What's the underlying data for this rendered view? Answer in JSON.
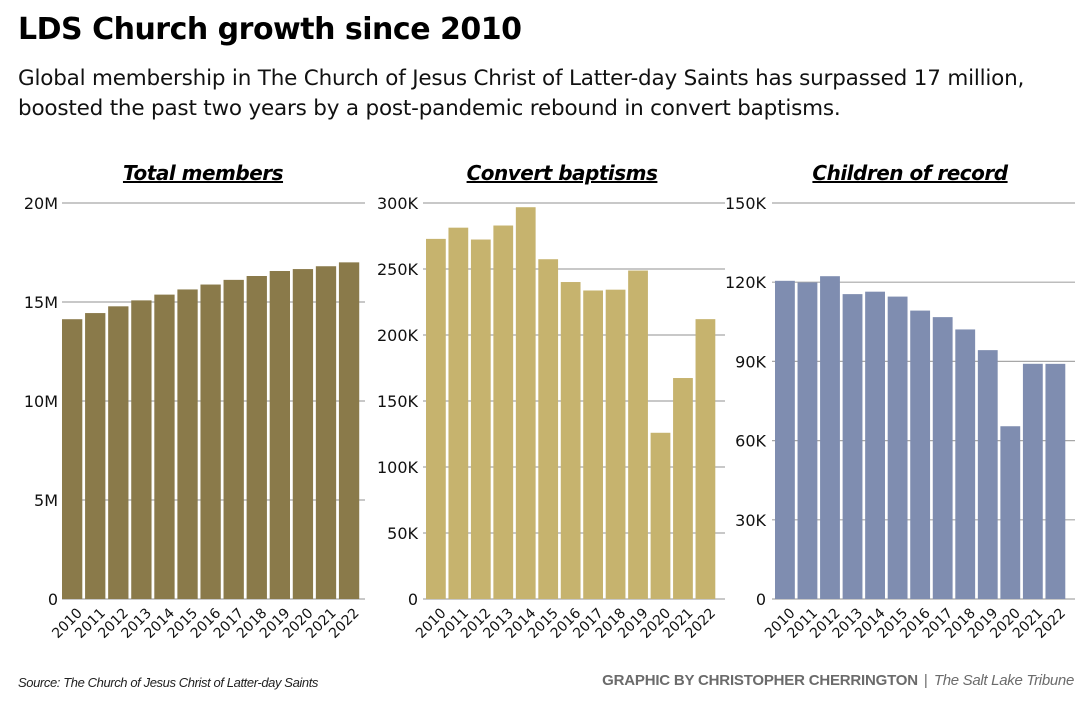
{
  "header": {
    "title": "LDS Church growth since 2010",
    "subtitle": "Global membership in The Church of Jesus Christ of Latter-day Saints has surpassed 17 million, boosted the past two years by a post-pandemic rebound in convert baptisms."
  },
  "footer": {
    "source": "Source: The Church of Jesus Christ of Latter-day Saints",
    "credit_by": "GRAPHIC BY CHRISTOPHER CHERRINGTON",
    "separator": "|",
    "publication": "The Salt Lake Tribune"
  },
  "chart_data": [
    {
      "type": "bar",
      "title": "Total members",
      "xlabel": "",
      "ylabel": "",
      "color": "#8a7a4a",
      "categories": [
        "2010",
        "2011",
        "2012",
        "2013",
        "2014",
        "2015",
        "2016",
        "2017",
        "2018",
        "2019",
        "2020",
        "2021",
        "2022"
      ],
      "values": [
        14131000,
        14441000,
        14782000,
        15082000,
        15373000,
        15634000,
        15882000,
        16118000,
        16313000,
        16566000,
        16663000,
        16806000,
        17002000
      ],
      "ylim": [
        0,
        20000000
      ],
      "yticks": [
        0,
        5000000,
        10000000,
        15000000,
        20000000
      ],
      "ytick_labels": [
        "0",
        "5M",
        "10M",
        "15M",
        "20M"
      ],
      "grid": true,
      "legend": "none"
    },
    {
      "type": "bar",
      "title": "Convert baptisms",
      "xlabel": "",
      "ylabel": "",
      "color": "#c6b36e",
      "categories": [
        "2010",
        "2011",
        "2012",
        "2013",
        "2014",
        "2015",
        "2016",
        "2017",
        "2018",
        "2019",
        "2020",
        "2021",
        "2022"
      ],
      "values": [
        272814,
        281312,
        272330,
        282945,
        296803,
        257402,
        240131,
        233729,
        234332,
        248835,
        125930,
        167405,
        212009
      ],
      "ylim": [
        0,
        300000
      ],
      "yticks": [
        0,
        50000,
        100000,
        150000,
        200000,
        250000,
        300000
      ],
      "ytick_labels": [
        "0",
        "50K",
        "100K",
        "150K",
        "200K",
        "250K",
        "300K"
      ],
      "grid": true,
      "legend": "none"
    },
    {
      "type": "bar",
      "title": "Children of record",
      "xlabel": "",
      "ylabel": "",
      "color": "#7f8db0",
      "categories": [
        "2010",
        "2011",
        "2012",
        "2013",
        "2014",
        "2015",
        "2016",
        "2017",
        "2018",
        "2019",
        "2020",
        "2021",
        "2022"
      ],
      "values": [
        120528,
        119917,
        122273,
        115486,
        116409,
        114550,
        109246,
        106771,
        102102,
        94266,
        65440,
        89093,
        89074
      ],
      "ylim": [
        0,
        150000
      ],
      "yticks": [
        0,
        30000,
        60000,
        90000,
        120000,
        150000
      ],
      "ytick_labels": [
        "0",
        "30K",
        "60K",
        "90K",
        "120K",
        "150K"
      ],
      "grid": true,
      "legend": "none"
    }
  ]
}
